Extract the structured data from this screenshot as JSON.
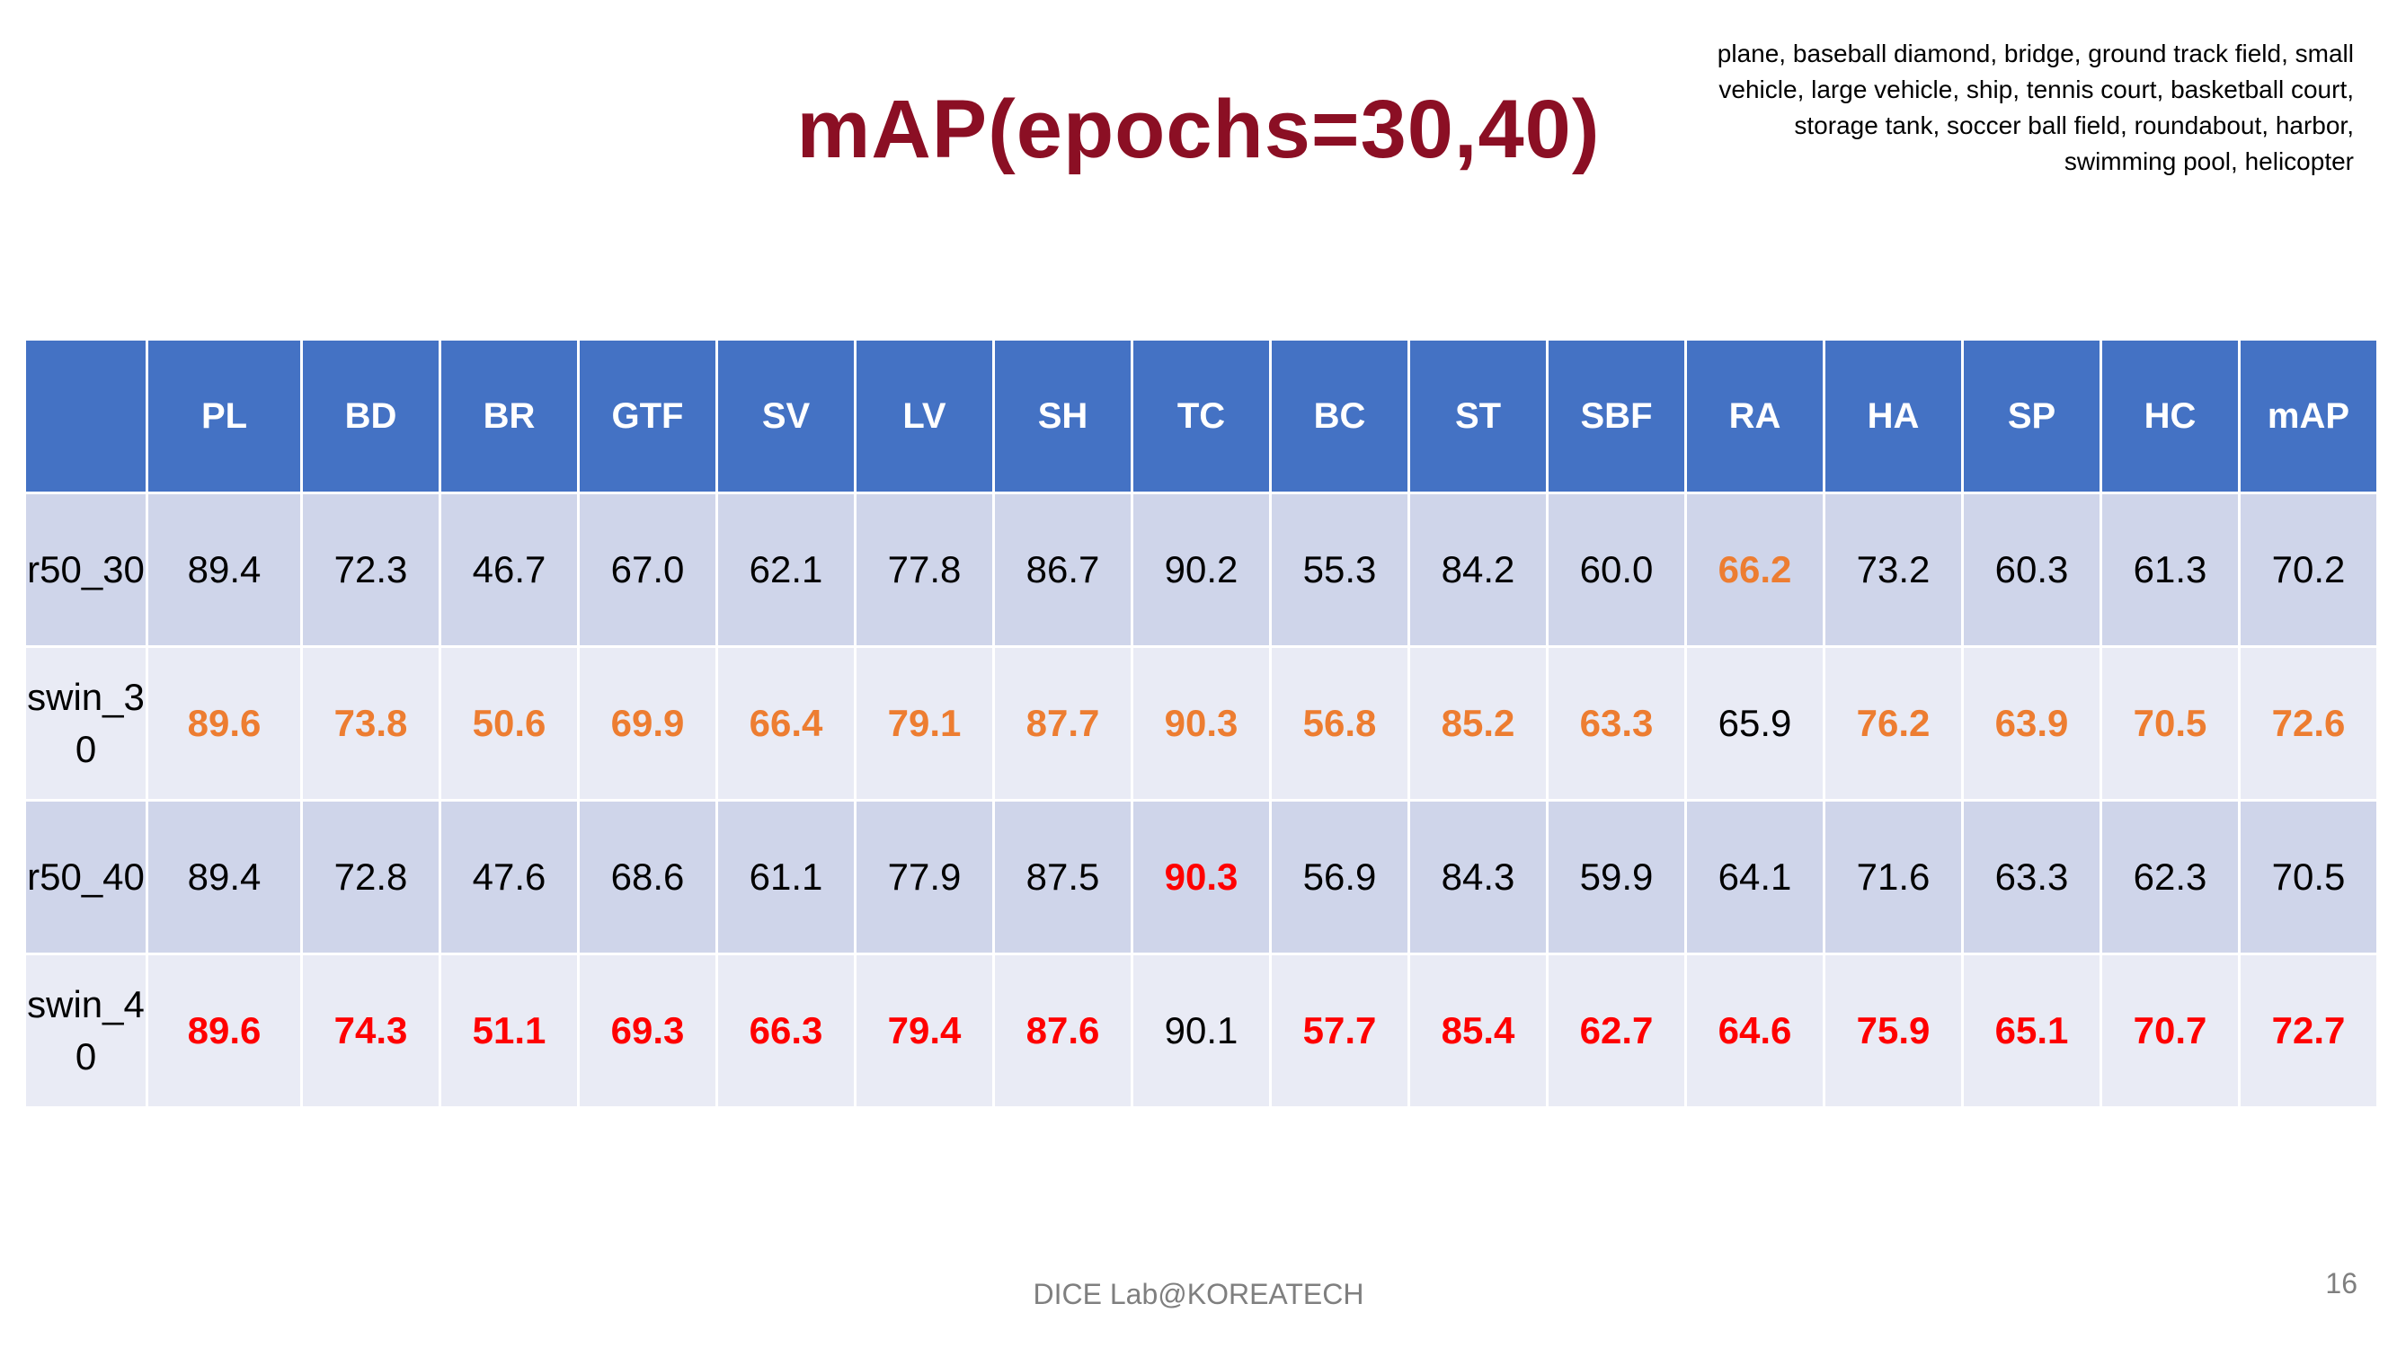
{
  "title": "mAP(epochs=30,40)",
  "note": "plane, baseball diamond, bridge, ground track field, small vehicle, large vehicle, ship, tennis court, basketball court, storage tank, soccer ball field, roundabout, harbor, swimming pool, helicopter",
  "table": {
    "headers": [
      "",
      "PL",
      "BD",
      "BR",
      "GTF",
      "SV",
      "LV",
      "SH",
      "TC",
      "BC",
      "ST",
      "SBF",
      "RA",
      "HA",
      "SP",
      "HC",
      "mAP"
    ],
    "rows": [
      {
        "label": "r50_30",
        "cells": [
          {
            "v": "89.4",
            "s": ""
          },
          {
            "v": "72.3",
            "s": ""
          },
          {
            "v": "46.7",
            "s": ""
          },
          {
            "v": "67.0",
            "s": ""
          },
          {
            "v": "62.1",
            "s": ""
          },
          {
            "v": "77.8",
            "s": ""
          },
          {
            "v": "86.7",
            "s": ""
          },
          {
            "v": "90.2",
            "s": ""
          },
          {
            "v": "55.3",
            "s": ""
          },
          {
            "v": "84.2",
            "s": ""
          },
          {
            "v": "60.0",
            "s": ""
          },
          {
            "v": "66.2",
            "s": "orange"
          },
          {
            "v": "73.2",
            "s": ""
          },
          {
            "v": "60.3",
            "s": ""
          },
          {
            "v": "61.3",
            "s": ""
          },
          {
            "v": "70.2",
            "s": ""
          }
        ]
      },
      {
        "label": "swin_30",
        "cells": [
          {
            "v": "89.6",
            "s": "orange"
          },
          {
            "v": "73.8",
            "s": "orange"
          },
          {
            "v": "50.6",
            "s": "orange"
          },
          {
            "v": "69.9",
            "s": "orange"
          },
          {
            "v": "66.4",
            "s": "orange"
          },
          {
            "v": "79.1",
            "s": "orange"
          },
          {
            "v": "87.7",
            "s": "orange"
          },
          {
            "v": "90.3",
            "s": "orange"
          },
          {
            "v": "56.8",
            "s": "orange"
          },
          {
            "v": "85.2",
            "s": "orange"
          },
          {
            "v": "63.3",
            "s": "orange"
          },
          {
            "v": "65.9",
            "s": ""
          },
          {
            "v": "76.2",
            "s": "orange"
          },
          {
            "v": "63.9",
            "s": "orange"
          },
          {
            "v": "70.5",
            "s": "orange"
          },
          {
            "v": "72.6",
            "s": "orange"
          }
        ]
      },
      {
        "label": "r50_40",
        "cells": [
          {
            "v": "89.4",
            "s": ""
          },
          {
            "v": "72.8",
            "s": ""
          },
          {
            "v": "47.6",
            "s": ""
          },
          {
            "v": "68.6",
            "s": ""
          },
          {
            "v": "61.1",
            "s": ""
          },
          {
            "v": "77.9",
            "s": ""
          },
          {
            "v": "87.5",
            "s": ""
          },
          {
            "v": "90.3",
            "s": "red"
          },
          {
            "v": "56.9",
            "s": ""
          },
          {
            "v": "84.3",
            "s": ""
          },
          {
            "v": "59.9",
            "s": ""
          },
          {
            "v": "64.1",
            "s": ""
          },
          {
            "v": "71.6",
            "s": ""
          },
          {
            "v": "63.3",
            "s": ""
          },
          {
            "v": "62.3",
            "s": ""
          },
          {
            "v": "70.5",
            "s": ""
          }
        ]
      },
      {
        "label": "swin_40",
        "cells": [
          {
            "v": "89.6",
            "s": "red"
          },
          {
            "v": "74.3",
            "s": "red"
          },
          {
            "v": "51.1",
            "s": "red"
          },
          {
            "v": "69.3",
            "s": "red"
          },
          {
            "v": "66.3",
            "s": "red"
          },
          {
            "v": "79.4",
            "s": "red"
          },
          {
            "v": "87.6",
            "s": "red"
          },
          {
            "v": "90.1",
            "s": ""
          },
          {
            "v": "57.7",
            "s": "red"
          },
          {
            "v": "85.4",
            "s": "red"
          },
          {
            "v": "62.7",
            "s": "red"
          },
          {
            "v": "64.6",
            "s": "red"
          },
          {
            "v": "75.9",
            "s": "red"
          },
          {
            "v": "65.1",
            "s": "red"
          },
          {
            "v": "70.7",
            "s": "red"
          },
          {
            "v": "72.7",
            "s": "red"
          }
        ]
      }
    ]
  },
  "footer": "DICE  Lab@KOREATECH",
  "page_number": "16",
  "colors": {
    "title": "#8b0f24",
    "header_bg": "#4472c4",
    "row_odd_bg": "#cfd5ea",
    "row_even_bg": "#e9ebf5",
    "highlight_orange": "#ed7d31",
    "highlight_red": "#ff0000"
  }
}
